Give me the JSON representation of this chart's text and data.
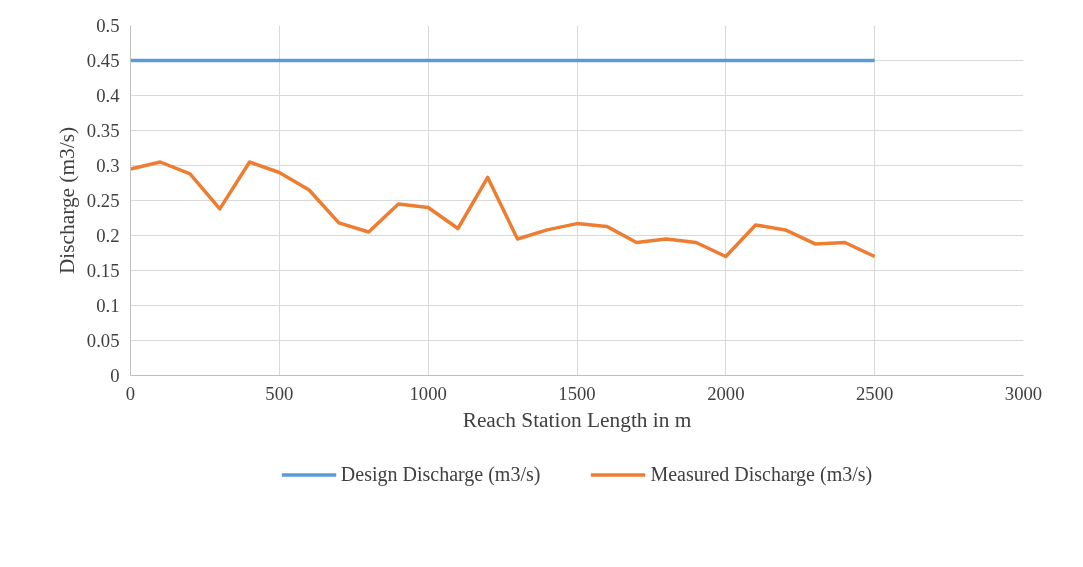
{
  "chart_data": {
    "type": "line",
    "xlabel": "Reach Station Length in m",
    "ylabel": "Discharge (m3/s)",
    "x": [
      0,
      100,
      200,
      300,
      400,
      500,
      600,
      700,
      800,
      900,
      1000,
      1100,
      1200,
      1300,
      1400,
      1500,
      1600,
      1700,
      1800,
      1900,
      2000,
      2100,
      2200,
      2300,
      2400,
      2500
    ],
    "series": [
      {
        "name": "Design Discharge (m3/s)",
        "color": "#5b9bd5",
        "values": [
          0.45,
          0.45,
          0.45,
          0.45,
          0.45,
          0.45,
          0.45,
          0.45,
          0.45,
          0.45,
          0.45,
          0.45,
          0.45,
          0.45,
          0.45,
          0.45,
          0.45,
          0.45,
          0.45,
          0.45,
          0.45,
          0.45,
          0.45,
          0.45,
          0.45,
          0.45
        ]
      },
      {
        "name": "Measured Discharge (m3/s)",
        "color": "#ed7d31",
        "values": [
          0.295,
          0.305,
          0.288,
          0.238,
          0.305,
          0.29,
          0.265,
          0.218,
          0.205,
          0.245,
          0.24,
          0.21,
          0.283,
          0.195,
          0.208,
          0.217,
          0.213,
          0.19,
          0.195,
          0.19,
          0.17,
          0.215,
          0.208,
          0.188,
          0.19,
          0.17
        ]
      }
    ],
    "xlim": [
      0,
      3000
    ],
    "xticks": [
      0,
      500,
      1000,
      1500,
      2000,
      2500,
      3000
    ],
    "ylim": [
      0,
      0.5
    ],
    "yticks": [
      0,
      0.05,
      0.1,
      0.15,
      0.2,
      0.25,
      0.3,
      0.35,
      0.4,
      0.45,
      0.5
    ],
    "grid": true,
    "legend": "bottom",
    "line_style": "solid"
  }
}
